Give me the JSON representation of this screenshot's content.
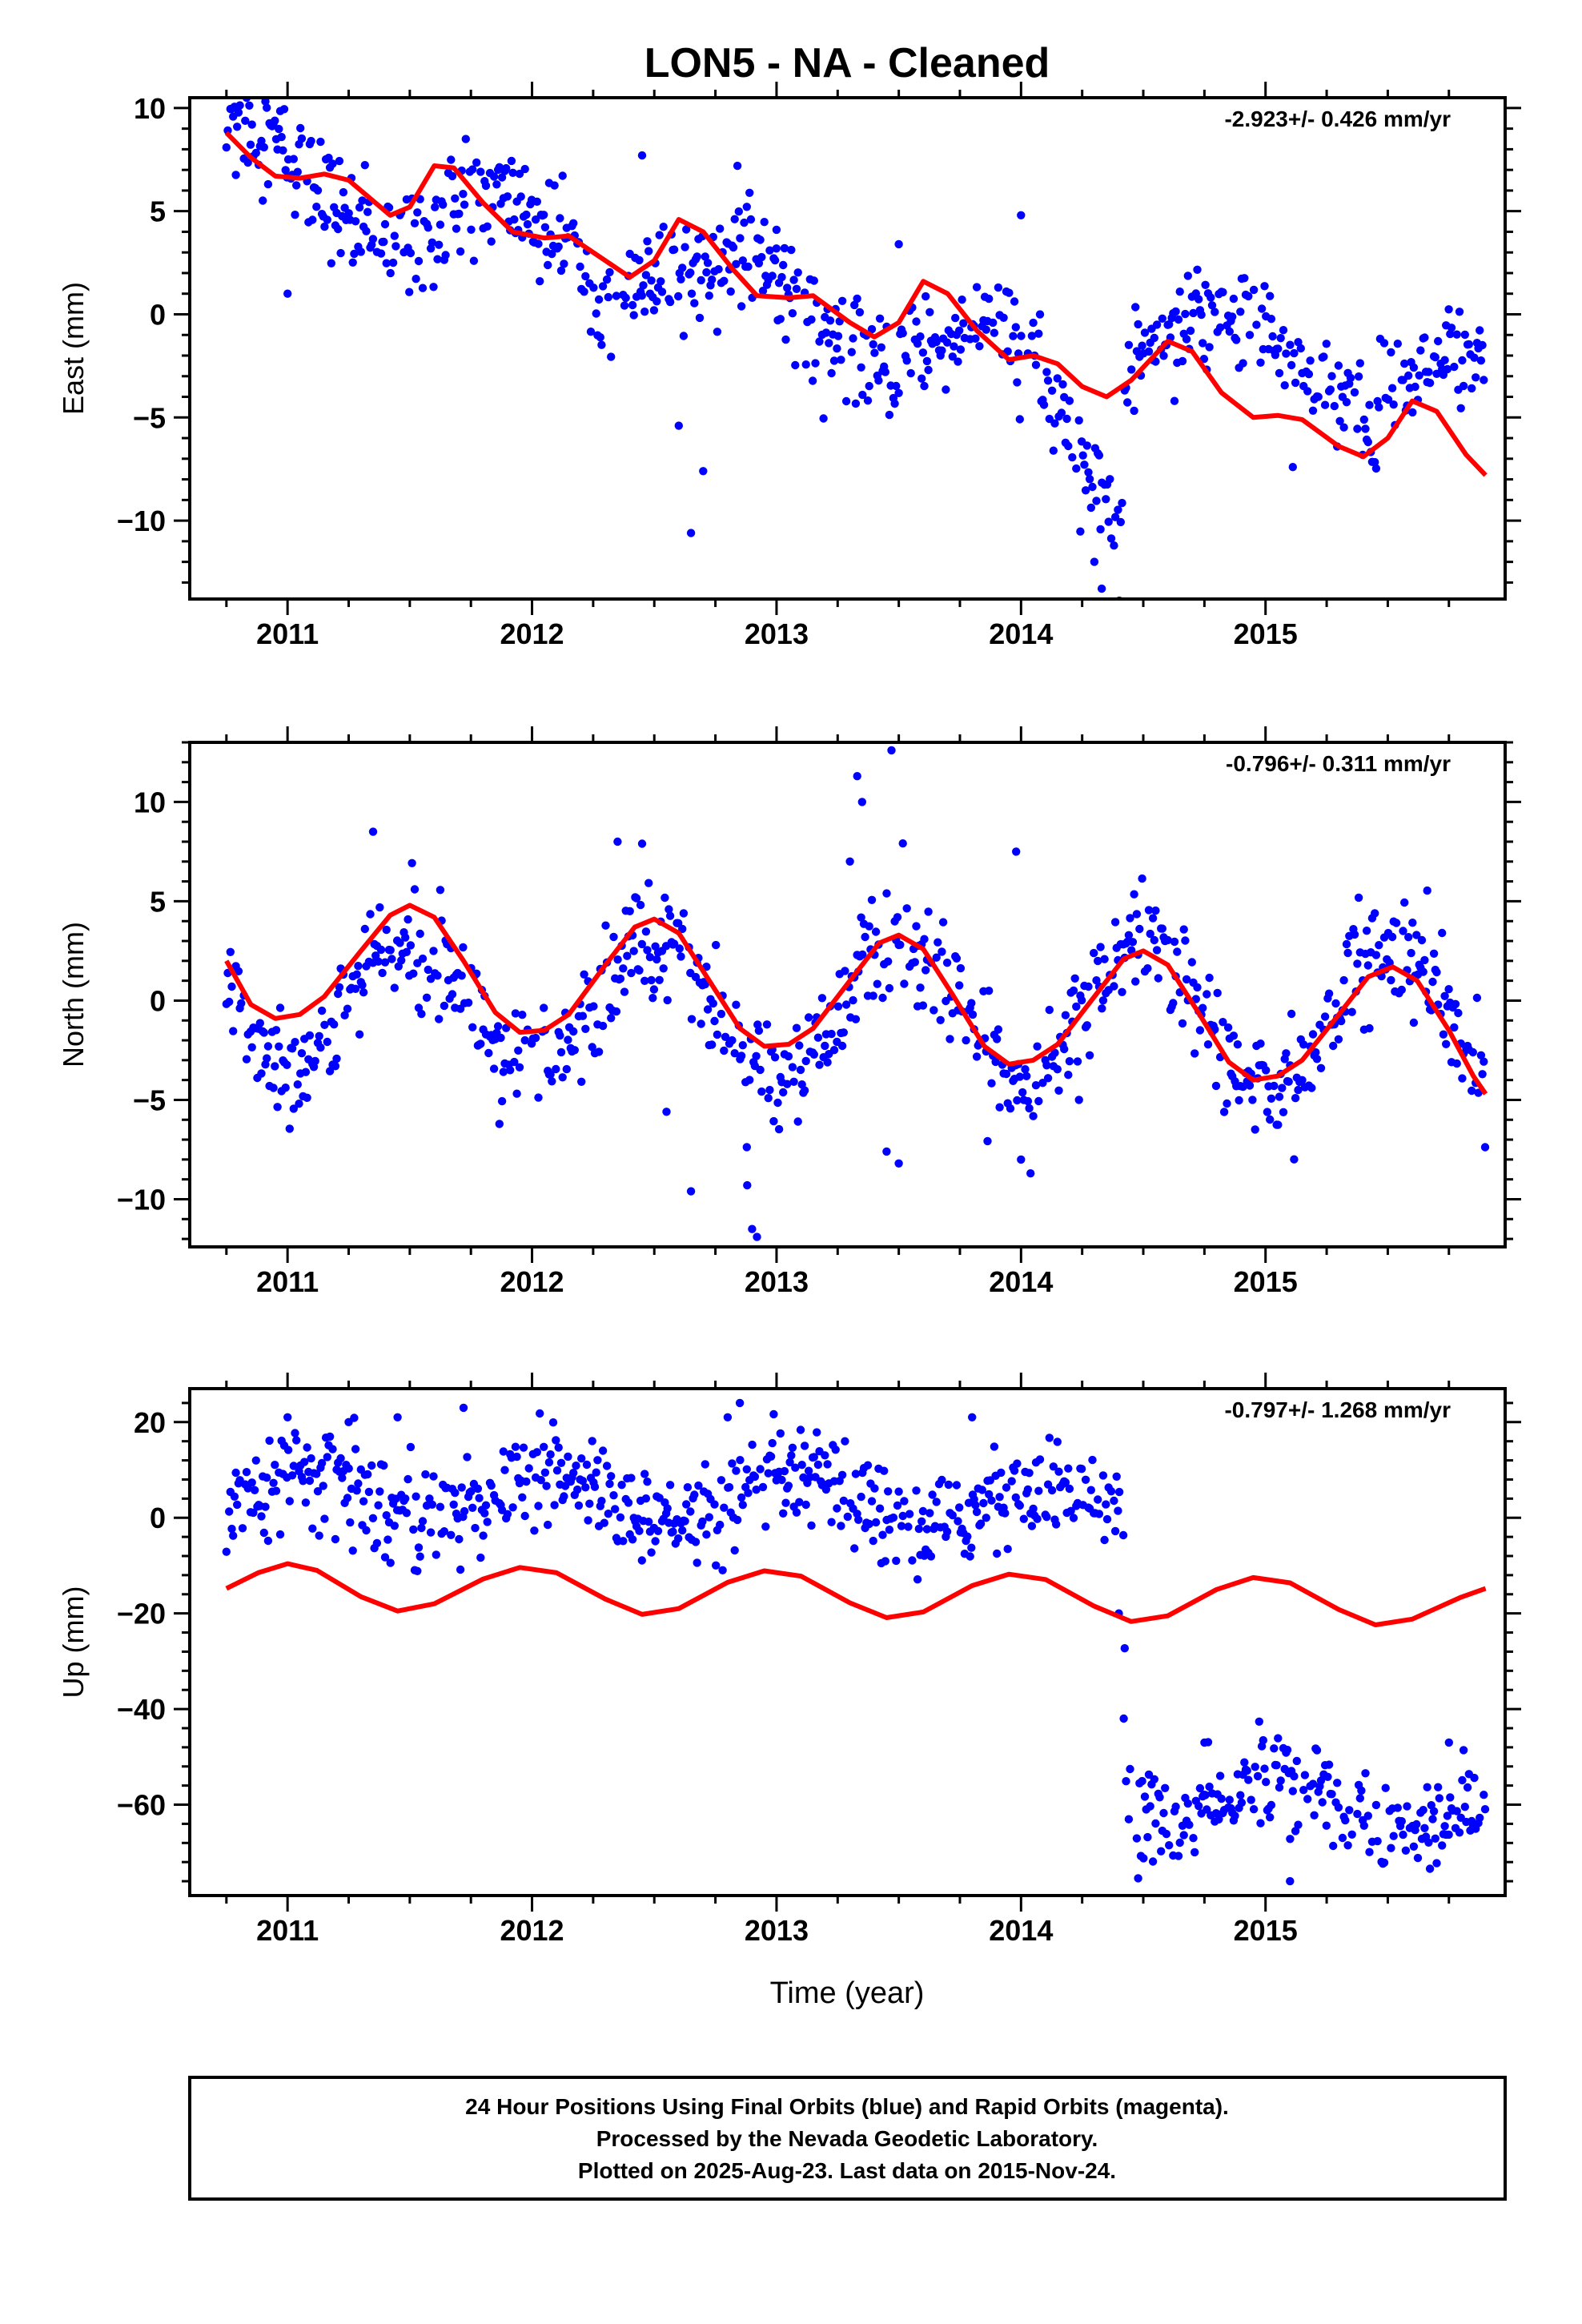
{
  "title": "LON5  - NA - Cleaned",
  "footer": {
    "lines": [
      "24 Hour Positions Using Final Orbits (blue) and Rapid Orbits (magenta).",
      "Processed by the Nevada Geodetic Laboratory.",
      "Plotted on 2025-Aug-23. Last data on 2015-Nov-24."
    ]
  },
  "colors": {
    "points": "#0000ff",
    "model": "#ff0000",
    "frame": "#000000"
  },
  "chart_data": [
    {
      "type": "scatter",
      "name": "east",
      "ylabel": "East (mm)",
      "xlabel": "",
      "rate_label": "-2.923+/- 0.426 mm/yr",
      "xlim": [
        2010.6,
        2015.98
      ],
      "ylim": [
        -13.8,
        10.5
      ],
      "xticks": [
        2011,
        2012,
        2013,
        2014,
        2015
      ],
      "yticks": [
        10,
        5,
        0,
        -5,
        -10
      ],
      "ytick_labels": [
        "10",
        "5",
        "0",
        "−5",
        "−10"
      ],
      "trend_points": [
        [
          2010.75,
          8.2
        ],
        [
          2011.0,
          6.6
        ],
        [
          2011.5,
          5.0
        ],
        [
          2012.0,
          3.6
        ],
        [
          2012.5,
          2.5
        ],
        [
          2013.0,
          0.8
        ],
        [
          2013.5,
          -1.2
        ],
        [
          2014.0,
          -2.6
        ],
        [
          2014.4,
          -4.2
        ],
        [
          2014.45,
          0.1
        ],
        [
          2015.0,
          -2.0
        ],
        [
          2015.5,
          -3.2
        ],
        [
          2015.9,
          -3.6
        ]
      ],
      "season_amp": 1.7,
      "season_phase": 0.62,
      "noise": 1.3,
      "outliers": [
        [
          2011.0,
          1.0
        ],
        [
          2012.6,
          -5.4
        ],
        [
          2012.7,
          -7.6
        ],
        [
          2012.65,
          -10.6
        ],
        [
          2013.0,
          4.1
        ],
        [
          2013.5,
          3.4
        ],
        [
          2014.0,
          4.8
        ],
        [
          2014.3,
          -12.0
        ],
        [
          2014.33,
          -13.3
        ],
        [
          2012.45,
          7.7
        ]
      ],
      "dip_segment": {
        "from": 2014.08,
        "to": 2014.42,
        "start": -3.5,
        "end": -11.0
      },
      "model_curve": [
        [
          2010.75,
          8.8
        ],
        [
          2010.85,
          7.6
        ],
        [
          2010.95,
          6.7
        ],
        [
          2011.05,
          6.6
        ],
        [
          2011.15,
          6.8
        ],
        [
          2011.25,
          6.5
        ],
        [
          2011.35,
          5.5
        ],
        [
          2011.42,
          4.8
        ],
        [
          2011.5,
          5.2
        ],
        [
          2011.6,
          7.2
        ],
        [
          2011.68,
          7.1
        ],
        [
          2011.8,
          5.4
        ],
        [
          2011.92,
          4.0
        ],
        [
          2012.05,
          3.7
        ],
        [
          2012.15,
          3.8
        ],
        [
          2012.3,
          2.6
        ],
        [
          2012.4,
          1.8
        ],
        [
          2012.5,
          2.6
        ],
        [
          2012.6,
          4.6
        ],
        [
          2012.7,
          4.0
        ],
        [
          2012.82,
          2.2
        ],
        [
          2012.92,
          0.9
        ],
        [
          2013.05,
          0.8
        ],
        [
          2013.15,
          0.9
        ],
        [
          2013.3,
          -0.4
        ],
        [
          2013.4,
          -1.1
        ],
        [
          2013.5,
          -0.4
        ],
        [
          2013.6,
          1.6
        ],
        [
          2013.7,
          1.0
        ],
        [
          2013.82,
          -0.8
        ],
        [
          2013.95,
          -2.2
        ],
        [
          2014.05,
          -2.0
        ],
        [
          2014.15,
          -2.4
        ],
        [
          2014.25,
          -3.5
        ],
        [
          2014.35,
          -4.0
        ],
        [
          2014.45,
          -3.2
        ],
        [
          2014.6,
          -1.3
        ],
        [
          2014.7,
          -1.8
        ],
        [
          2014.82,
          -3.8
        ],
        [
          2014.95,
          -5.0
        ],
        [
          2015.05,
          -4.9
        ],
        [
          2015.15,
          -5.1
        ],
        [
          2015.3,
          -6.4
        ],
        [
          2015.4,
          -6.9
        ],
        [
          2015.5,
          -6.0
        ],
        [
          2015.6,
          -4.2
        ],
        [
          2015.7,
          -4.7
        ],
        [
          2015.82,
          -6.8
        ],
        [
          2015.9,
          -7.8
        ]
      ]
    },
    {
      "type": "scatter",
      "name": "north",
      "ylabel": "North (mm)",
      "xlabel": "",
      "rate_label": "-0.796+/- 0.311 mm/yr",
      "xlim": [
        2010.6,
        2015.98
      ],
      "ylim": [
        -12.4,
        13.0
      ],
      "xticks": [
        2011,
        2012,
        2013,
        2014,
        2015
      ],
      "yticks": [
        10,
        5,
        0,
        -5,
        -10
      ],
      "ytick_labels": [
        "10",
        "5",
        "0",
        "−5",
        "−10"
      ],
      "trend_points": [
        [
          2010.75,
          0.2
        ],
        [
          2015.9,
          -1.3
        ]
      ],
      "season_amp": 3.6,
      "season_phase": 0.26,
      "noise": 1.4,
      "outliers": [
        [
          2012.9,
          -11.5
        ],
        [
          2012.92,
          -11.9
        ],
        [
          2012.88,
          -9.3
        ],
        [
          2012.65,
          -9.6
        ],
        [
          2013.33,
          11.3
        ],
        [
          2013.35,
          10.0
        ],
        [
          2013.47,
          12.6
        ],
        [
          2013.45,
          -7.6
        ],
        [
          2013.5,
          -8.2
        ],
        [
          2013.3,
          7.0
        ],
        [
          2011.35,
          8.5
        ],
        [
          2012.35,
          8.0
        ],
        [
          2012.45,
          7.9
        ],
        [
          2013.98,
          7.5
        ],
        [
          2012.55,
          -5.6
        ],
        [
          2014.0,
          -8.0
        ]
      ],
      "model_curve": [
        [
          2010.75,
          2.0
        ],
        [
          2010.85,
          -0.2
        ],
        [
          2010.95,
          -0.9
        ],
        [
          2011.05,
          -0.7
        ],
        [
          2011.15,
          0.2
        ],
        [
          2011.3,
          2.5
        ],
        [
          2011.42,
          4.3
        ],
        [
          2011.5,
          4.8
        ],
        [
          2011.6,
          4.2
        ],
        [
          2011.72,
          2.0
        ],
        [
          2011.85,
          -0.6
        ],
        [
          2011.95,
          -1.6
        ],
        [
          2012.05,
          -1.5
        ],
        [
          2012.15,
          -0.7
        ],
        [
          2012.3,
          1.8
        ],
        [
          2012.42,
          3.7
        ],
        [
          2012.5,
          4.1
        ],
        [
          2012.6,
          3.4
        ],
        [
          2012.72,
          1.1
        ],
        [
          2012.85,
          -1.4
        ],
        [
          2012.95,
          -2.3
        ],
        [
          2013.05,
          -2.2
        ],
        [
          2013.15,
          -1.4
        ],
        [
          2013.3,
          1.0
        ],
        [
          2013.42,
          2.9
        ],
        [
          2013.5,
          3.3
        ],
        [
          2013.6,
          2.6
        ],
        [
          2013.72,
          0.3
        ],
        [
          2013.85,
          -2.3
        ],
        [
          2013.95,
          -3.2
        ],
        [
          2014.05,
          -3.0
        ],
        [
          2014.15,
          -2.2
        ],
        [
          2014.3,
          0.2
        ],
        [
          2014.42,
          2.1
        ],
        [
          2014.5,
          2.5
        ],
        [
          2014.6,
          1.8
        ],
        [
          2014.72,
          -0.5
        ],
        [
          2014.85,
          -3.1
        ],
        [
          2014.95,
          -4.0
        ],
        [
          2015.05,
          -3.8
        ],
        [
          2015.15,
          -3.0
        ],
        [
          2015.3,
          -0.7
        ],
        [
          2015.42,
          1.2
        ],
        [
          2015.52,
          1.7
        ],
        [
          2015.62,
          1.0
        ],
        [
          2015.75,
          -1.5
        ],
        [
          2015.85,
          -3.8
        ],
        [
          2015.9,
          -4.7
        ]
      ]
    },
    {
      "type": "scatter",
      "name": "up",
      "ylabel": "Up (mm)",
      "xlabel": "Time (year)",
      "rate_label": "-0.797+/- 1.268 mm/yr",
      "xlim": [
        2010.6,
        2015.98
      ],
      "ylim": [
        -79,
        27
      ],
      "xticks": [
        2011,
        2012,
        2013,
        2014,
        2015
      ],
      "yticks": [
        20,
        0,
        -20,
        -40,
        -60
      ],
      "ytick_labels": [
        "20",
        "0",
        "−20",
        "−40",
        "−60"
      ],
      "trend_points": [
        [
          2010.75,
          5.0
        ],
        [
          2014.42,
          2.0
        ],
        [
          2014.43,
          -58.0
        ],
        [
          2015.9,
          -61.0
        ]
      ],
      "season_amp": 5.0,
      "season_phase": 0.83,
      "noise": 5.0,
      "outliers": [
        [
          2011.0,
          21.0
        ],
        [
          2011.25,
          20.0
        ],
        [
          2012.85,
          24.0
        ],
        [
          2012.8,
          21.0
        ],
        [
          2011.45,
          21.0
        ],
        [
          2011.72,
          23.0
        ],
        [
          2013.8,
          21.0
        ],
        [
          2014.42,
          -42.0
        ],
        [
          2015.75,
          -47.0
        ],
        [
          2014.75,
          -47.0
        ],
        [
          2015.1,
          -76.0
        ],
        [
          2014.4,
          -20.0
        ]
      ],
      "gap": [
        2014.45,
        2014.47
      ],
      "model_curve": [
        [
          2010.75,
          -14.8
        ],
        [
          2010.88,
          -11.5
        ],
        [
          2011.0,
          -9.6
        ],
        [
          2011.12,
          -11.0
        ],
        [
          2011.3,
          -16.5
        ],
        [
          2011.45,
          -19.5
        ],
        [
          2011.6,
          -18.0
        ],
        [
          2011.8,
          -12.8
        ],
        [
          2011.95,
          -10.4
        ],
        [
          2012.1,
          -11.5
        ],
        [
          2012.3,
          -17.0
        ],
        [
          2012.45,
          -20.2
        ],
        [
          2012.6,
          -19.0
        ],
        [
          2012.8,
          -13.5
        ],
        [
          2012.95,
          -11.1
        ],
        [
          2013.1,
          -12.2
        ],
        [
          2013.3,
          -17.8
        ],
        [
          2013.45,
          -20.9
        ],
        [
          2013.6,
          -19.7
        ],
        [
          2013.8,
          -14.2
        ],
        [
          2013.95,
          -11.8
        ],
        [
          2014.1,
          -12.9
        ],
        [
          2014.3,
          -18.5
        ],
        [
          2014.45,
          -21.7
        ],
        [
          2014.6,
          -20.5
        ],
        [
          2014.8,
          -15.0
        ],
        [
          2014.95,
          -12.5
        ],
        [
          2015.1,
          -13.6
        ],
        [
          2015.3,
          -19.2
        ],
        [
          2015.45,
          -22.4
        ],
        [
          2015.6,
          -21.2
        ],
        [
          2015.8,
          -16.6
        ],
        [
          2015.9,
          -14.8
        ]
      ]
    }
  ]
}
